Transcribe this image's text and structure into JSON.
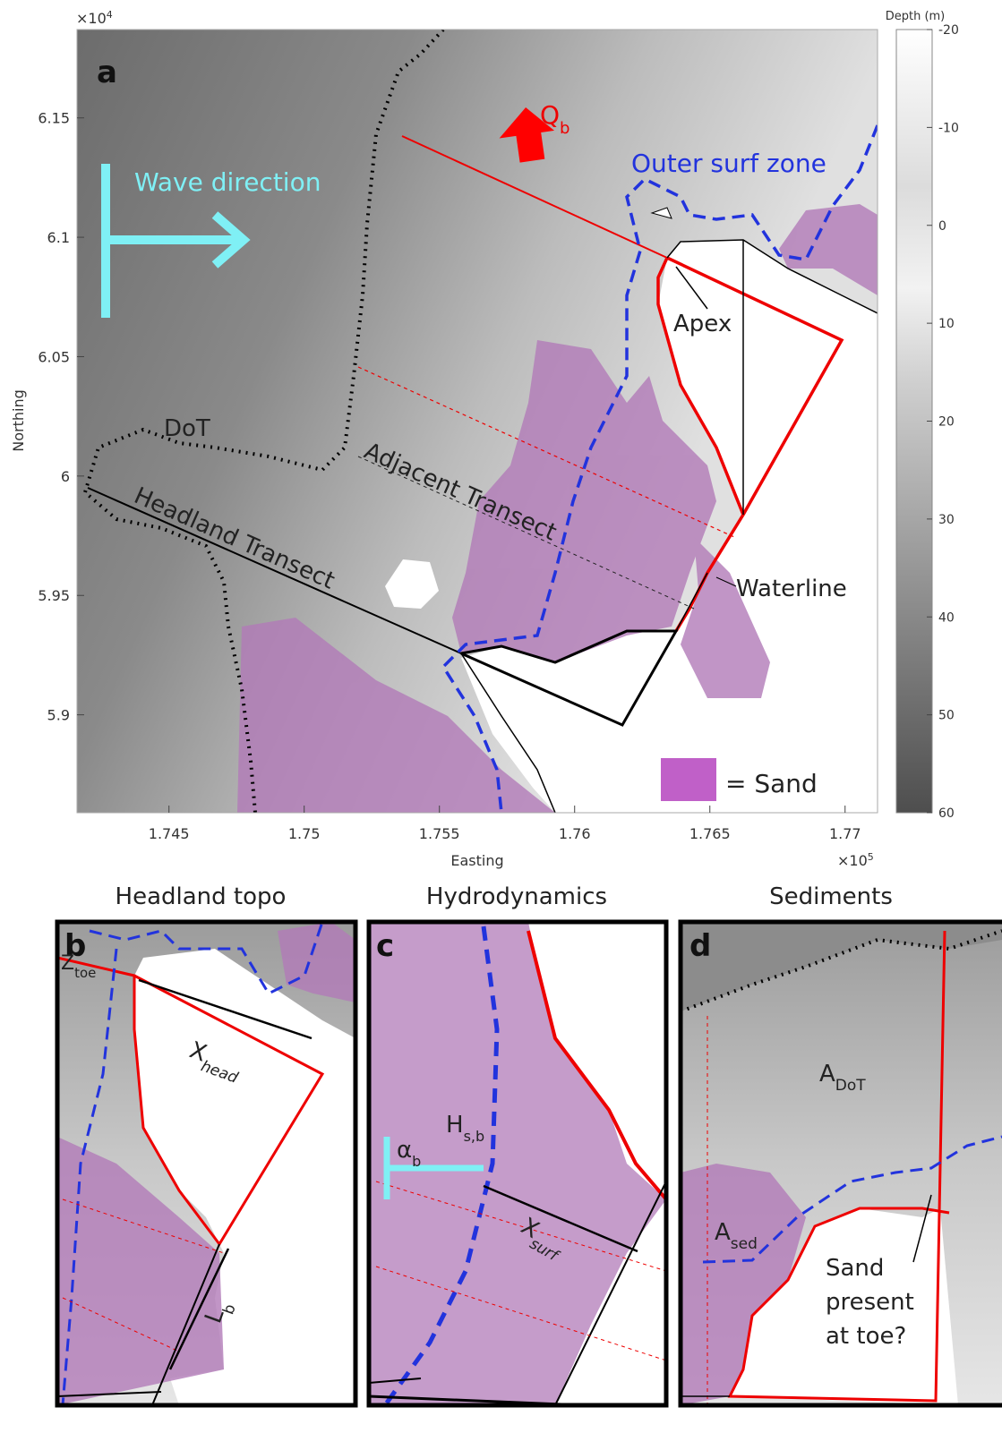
{
  "panel_a": {
    "label": "a",
    "x_label": "Easting",
    "y_label": "Northing",
    "x_exponent": {
      "base": "×10",
      "exp": "5"
    },
    "y_exponent": {
      "base": "×10",
      "exp": "4"
    },
    "xlim": [
      1.7416,
      1.7712
    ],
    "xticks": [
      1.745,
      1.75,
      1.755,
      1.76,
      1.765,
      1.77
    ],
    "ylim": [
      5.859,
      6.187
    ],
    "yticks": [
      5.9,
      5.95,
      6,
      6.05,
      6.1,
      6.15
    ],
    "annotations": {
      "wave_direction": "Wave direction",
      "outer_surf_zone": "Outer surf zone",
      "q_b": {
        "main": "Q",
        "sub": "b"
      },
      "apex": "Apex",
      "dot": "DoT",
      "adjacent_transect": "Adjacent Transect",
      "headland_transect": "Headland Transect",
      "waterline": "Waterline",
      "sand": "= Sand"
    }
  },
  "colorbar": {
    "title": "Depth (m)",
    "lim": [
      -20,
      60
    ],
    "ticks": [
      -20,
      -10,
      0,
      10,
      20,
      30,
      40,
      50,
      60
    ]
  },
  "panel_b": {
    "title": "Headland topo",
    "label": "b",
    "z_toe": {
      "main": "Z",
      "sub": "toe"
    },
    "x_head": {
      "main": "X",
      "sub": "head"
    },
    "l_b": {
      "main": "L",
      "sub": "b"
    }
  },
  "panel_c": {
    "title": "Hydrodynamics",
    "label": "c",
    "alpha_b": {
      "main": "α",
      "sub": "b"
    },
    "h_sb": {
      "main": "H",
      "sub": "s,b"
    },
    "x_surf": {
      "main": "X",
      "sub": "surf"
    }
  },
  "panel_d": {
    "title": "Sediments",
    "label": "d",
    "a_dot": {
      "main": "A",
      "sub": "DoT"
    },
    "a_sed": {
      "main": "A",
      "sub": "sed"
    },
    "sand_question": [
      "Sand",
      "present",
      "at toe?"
    ]
  }
}
